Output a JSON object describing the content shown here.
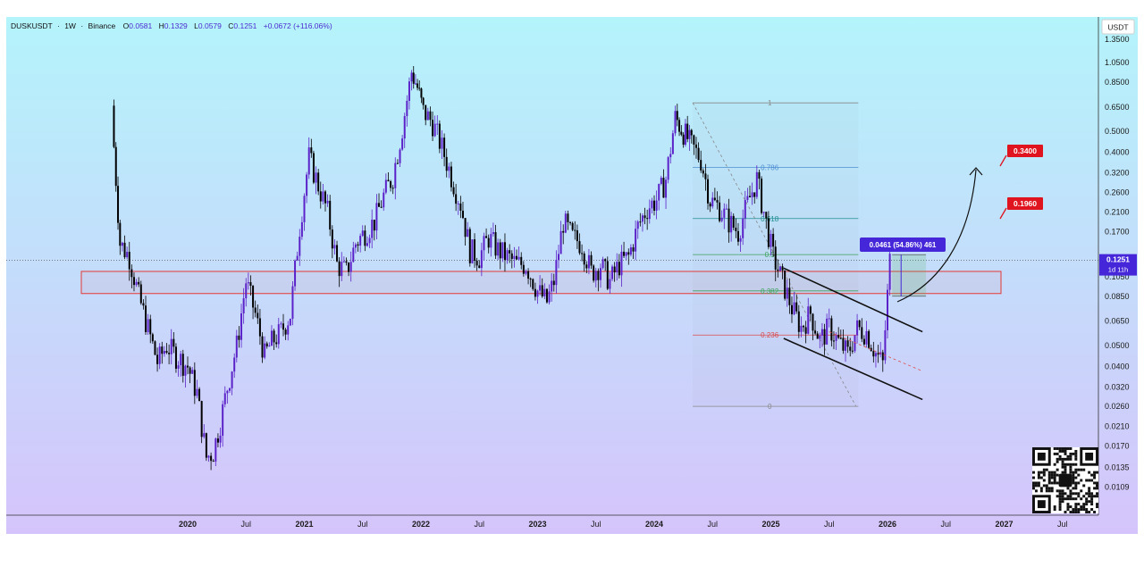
{
  "header": {
    "symbol": "DUSKUSDT",
    "interval": "1W",
    "exchange": "Binance",
    "separator": "·",
    "open_label": "O",
    "open": "0.0581",
    "high_label": "H",
    "high": "0.1329",
    "low_label": "L",
    "low": "0.0579",
    "close_label": "C",
    "close": "0.1251",
    "change": "+0.0672 (+116.06%)"
  },
  "currency_button": "USDT",
  "price_badge": {
    "price": "0.1251",
    "countdown": "1d 11h"
  },
  "measure_badge": "0.0461 (54.86%) 461",
  "targets": [
    {
      "label": "0.3400",
      "value": 0.34
    },
    {
      "label": "0.1960",
      "value": 0.196
    }
  ],
  "fib_levels": [
    {
      "label": "1",
      "value": 0.68
    },
    {
      "label": "0.786",
      "value": 0.34
    },
    {
      "label": "0.618",
      "value": 0.196
    },
    {
      "label": "0.5",
      "value": 0.133
    },
    {
      "label": "0.382",
      "value": 0.09
    },
    {
      "label": "0.236",
      "value": 0.056
    },
    {
      "label": "0",
      "value": 0.026
    }
  ],
  "colors": {
    "bg_top": "#b4f4fb",
    "bg_bottom": "#d5c4fb",
    "candle": "#5b22c9",
    "candle_dark": "#000000",
    "target_red": "#e0141e",
    "zone_red": "#e53935",
    "badge_purple": "#4527d9",
    "fib_green": "#3aa35a",
    "fib_blue": "#4b8fd6",
    "fib_red": "#e04848",
    "fib_gray": "#888888"
  },
  "chart_data": {
    "type": "candlestick",
    "x_axis_labels": [
      "2020",
      "Jul",
      "2021",
      "Jul",
      "2022",
      "Jul",
      "2023",
      "Jul",
      "2024",
      "Jul",
      "2025",
      "Jul",
      "2026",
      "Jul",
      "2027",
      "Jul"
    ],
    "y_axis_labels": [
      "1.3500",
      "1.0500",
      "0.8500",
      "0.6500",
      "0.5000",
      "0.4000",
      "0.3200",
      "0.2600",
      "0.2100",
      "0.1700",
      "0.1050",
      "0.0850",
      "0.0650",
      "0.0500",
      "0.0400",
      "0.0320",
      "0.0260",
      "0.0210",
      "0.0170",
      "0.0135",
      "0.0109"
    ],
    "y_scale": "log",
    "y_range": [
      0.0095,
      1.4
    ],
    "series": [
      {
        "t": [
          2019.35,
          2019.42,
          2019.5,
          2019.58,
          2019.66,
          2019.74,
          2019.82,
          2019.9,
          2020.0,
          2020.08,
          2020.16,
          2020.22,
          2020.28,
          2020.34,
          2020.42,
          2020.5,
          2020.58,
          2020.66,
          2020.72,
          2020.8,
          2020.88,
          2020.96,
          2021.04,
          2021.12,
          2021.2,
          2021.28,
          2021.36,
          2021.44,
          2021.52,
          2021.6,
          2021.68,
          2021.76,
          2021.84,
          2021.92,
          2021.97,
          2022.02,
          2022.1,
          2022.18,
          2022.26,
          2022.34,
          2022.42,
          2022.5,
          2022.58,
          2022.66,
          2022.74,
          2022.82,
          2022.9,
          2023.0,
          2023.08,
          2023.14,
          2023.22,
          2023.3,
          2023.38,
          2023.46,
          2023.54,
          2023.62,
          2023.7,
          2023.78,
          2023.86,
          2023.94,
          2024.02,
          2024.1,
          2024.18,
          2024.25,
          2024.32,
          2024.4,
          2024.48,
          2024.56,
          2024.64,
          2024.72,
          2024.8,
          2024.88,
          2024.94,
          2025.02,
          2025.1,
          2025.18,
          2025.26,
          2025.34,
          2025.42,
          2025.5,
          2025.58,
          2025.66,
          2025.74,
          2025.82,
          2025.9,
          2025.96,
          2026.02
        ],
        "close": [
          0.6,
          0.15,
          0.13,
          0.085,
          0.06,
          0.042,
          0.05,
          0.045,
          0.04,
          0.03,
          0.015,
          0.016,
          0.022,
          0.032,
          0.05,
          0.1,
          0.07,
          0.045,
          0.052,
          0.058,
          0.07,
          0.18,
          0.38,
          0.28,
          0.21,
          0.12,
          0.11,
          0.15,
          0.17,
          0.19,
          0.25,
          0.31,
          0.52,
          0.95,
          0.8,
          0.62,
          0.55,
          0.42,
          0.31,
          0.23,
          0.14,
          0.13,
          0.16,
          0.14,
          0.13,
          0.12,
          0.12,
          0.09,
          0.08,
          0.1,
          0.19,
          0.16,
          0.15,
          0.11,
          0.12,
          0.1,
          0.12,
          0.13,
          0.18,
          0.22,
          0.24,
          0.3,
          0.58,
          0.5,
          0.43,
          0.37,
          0.24,
          0.22,
          0.19,
          0.17,
          0.23,
          0.3,
          0.21,
          0.13,
          0.1,
          0.075,
          0.061,
          0.071,
          0.053,
          0.061,
          0.052,
          0.046,
          0.06,
          0.058,
          0.046,
          0.041,
          0.125
        ]
      }
    ]
  }
}
